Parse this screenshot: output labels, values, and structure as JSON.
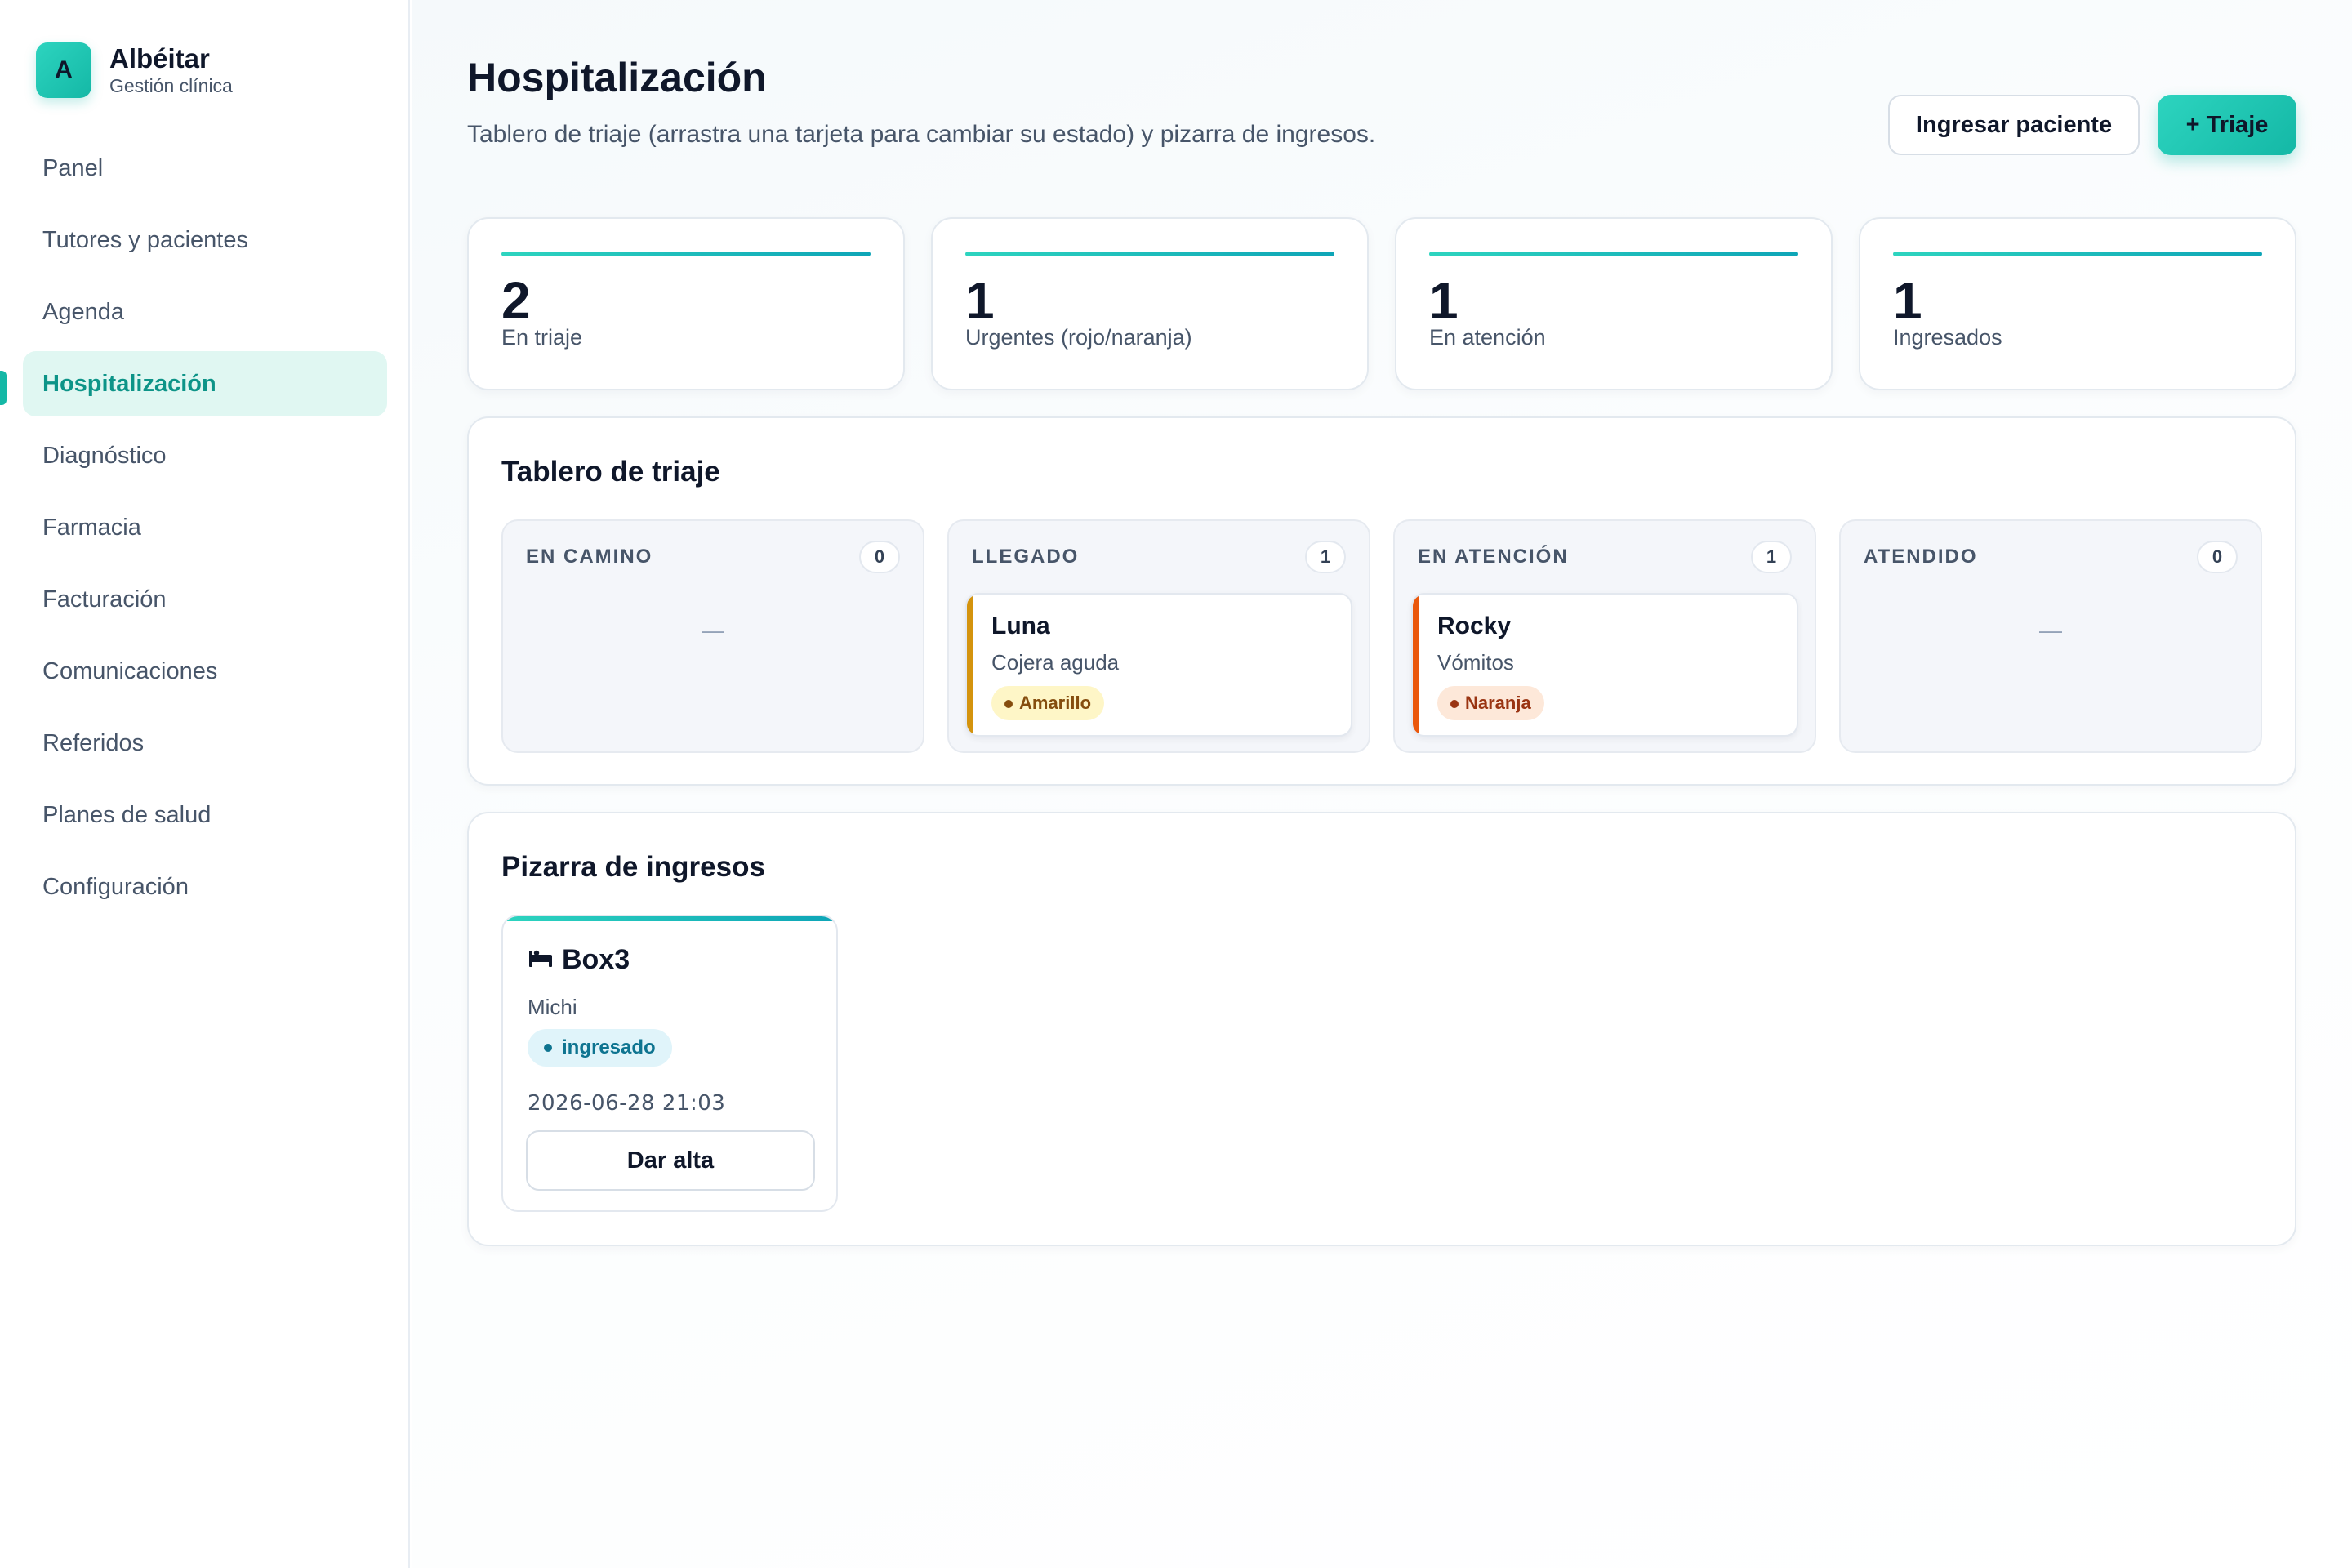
{
  "brand": {
    "logo_letter": "A",
    "name": "Albéitar",
    "subtitle": "Gestión clínica"
  },
  "sidebar": {
    "items": [
      {
        "label": "Panel",
        "active": false
      },
      {
        "label": "Tutores y pacientes",
        "active": false
      },
      {
        "label": "Agenda",
        "active": false
      },
      {
        "label": "Hospitalización",
        "active": true
      },
      {
        "label": "Diagnóstico",
        "active": false
      },
      {
        "label": "Farmacia",
        "active": false
      },
      {
        "label": "Facturación",
        "active": false
      },
      {
        "label": "Comunicaciones",
        "active": false
      },
      {
        "label": "Referidos",
        "active": false
      },
      {
        "label": "Planes de salud",
        "active": false
      },
      {
        "label": "Configuración",
        "active": false
      }
    ]
  },
  "header": {
    "title": "Hospitalización",
    "subtitle": "Tablero de triaje (arrastra una tarjeta para cambiar su estado) y pizarra de ingresos.",
    "admit_button": "Ingresar paciente",
    "triage_button": "+ Triaje"
  },
  "stats": [
    {
      "value": "2",
      "label": "En triaje"
    },
    {
      "value": "1",
      "label": "Urgentes (rojo/naranja)"
    },
    {
      "value": "1",
      "label": "En atención"
    },
    {
      "value": "1",
      "label": "Ingresados"
    }
  ],
  "triage_board": {
    "title": "Tablero de triaje",
    "columns": [
      {
        "title": "EN CAMINO",
        "count": "0",
        "empty": "—"
      },
      {
        "title": "LLEGADO",
        "count": "1",
        "card": {
          "name": "Luna",
          "reason": "Cojera aguda",
          "level": "Amarillo"
        }
      },
      {
        "title": "EN ATENCIÓN",
        "count": "1",
        "card": {
          "name": "Rocky",
          "reason": "Vómitos",
          "level": "Naranja"
        }
      },
      {
        "title": "ATENDIDO",
        "count": "0",
        "empty": "—"
      }
    ]
  },
  "admissions_board": {
    "title": "Pizarra de ingresos",
    "cards": [
      {
        "icon": "bed-icon",
        "location": "Box3",
        "patient": "Michi",
        "status": "ingresado",
        "datetime": "2026-06-28 21:03",
        "discharge_button": "Dar alta"
      }
    ]
  },
  "colors": {
    "accent": "#14b8a6",
    "amarillo_border": "#d4930d",
    "amarillo_bg": "#fef6c7",
    "amarillo_text": "#854d0e",
    "naranja_border": "#ea580c",
    "naranja_bg": "#fde8d9",
    "naranja_text": "#9a3412",
    "ingresado_bg": "#e0f4fa",
    "ingresado_text": "#0e7490"
  }
}
